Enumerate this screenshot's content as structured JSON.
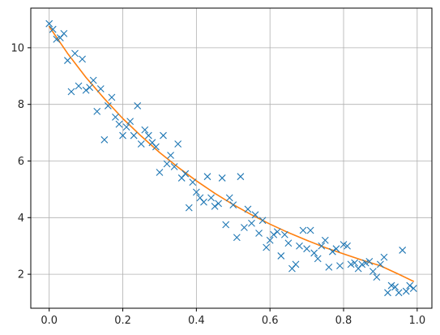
{
  "chart_data": {
    "type": "scatter",
    "title": "",
    "xlabel": "",
    "ylabel": "",
    "xlim": [
      -0.05,
      1.04
    ],
    "ylim": [
      0.8,
      11.4
    ],
    "grid": true,
    "x_ticks": [
      "0.0",
      "0.2",
      "0.4",
      "0.6",
      "0.8",
      "1.0"
    ],
    "y_ticks": [
      "2",
      "4",
      "6",
      "8",
      "10"
    ],
    "colors": {
      "points": "#1f77b4",
      "fit": "#ff7f0e",
      "grid": "#b0b0b0",
      "axes": "#000000"
    },
    "series": [
      {
        "kind": "scatter",
        "marker": "x",
        "x": [
          0.0,
          0.01,
          0.02,
          0.03,
          0.04,
          0.05,
          0.06,
          0.07,
          0.08,
          0.09,
          0.1,
          0.11,
          0.12,
          0.13,
          0.14,
          0.15,
          0.16,
          0.17,
          0.18,
          0.19,
          0.2,
          0.21,
          0.22,
          0.23,
          0.24,
          0.25,
          0.26,
          0.27,
          0.28,
          0.29,
          0.3,
          0.31,
          0.32,
          0.33,
          0.34,
          0.35,
          0.36,
          0.37,
          0.38,
          0.39,
          0.4,
          0.41,
          0.42,
          0.43,
          0.44,
          0.45,
          0.46,
          0.47,
          0.48,
          0.49,
          0.5,
          0.51,
          0.52,
          0.53,
          0.54,
          0.55,
          0.56,
          0.57,
          0.58,
          0.59,
          0.6,
          0.61,
          0.62,
          0.63,
          0.64,
          0.65,
          0.66,
          0.67,
          0.68,
          0.69,
          0.7,
          0.71,
          0.72,
          0.73,
          0.74,
          0.75,
          0.76,
          0.77,
          0.78,
          0.79,
          0.8,
          0.81,
          0.82,
          0.83,
          0.84,
          0.85,
          0.86,
          0.87,
          0.88,
          0.89,
          0.9,
          0.91,
          0.92,
          0.93,
          0.94,
          0.95,
          0.96,
          0.97,
          0.98,
          0.99
        ],
        "y": [
          10.85,
          10.65,
          10.3,
          10.35,
          10.5,
          9.55,
          8.45,
          9.8,
          8.65,
          9.6,
          8.5,
          8.6,
          8.85,
          7.75,
          8.55,
          6.75,
          7.95,
          8.25,
          7.55,
          7.3,
          6.9,
          7.2,
          7.4,
          6.9,
          7.95,
          6.6,
          7.1,
          6.9,
          6.65,
          6.5,
          5.6,
          6.9,
          5.9,
          6.2,
          5.8,
          6.6,
          5.4,
          5.55,
          4.35,
          5.25,
          4.9,
          4.7,
          4.55,
          5.45,
          4.7,
          4.4,
          4.5,
          5.4,
          3.75,
          4.7,
          4.45,
          3.3,
          5.45,
          3.65,
          4.3,
          3.8,
          4.1,
          3.45,
          3.9,
          2.95,
          3.2,
          3.4,
          3.5,
          2.65,
          3.4,
          3.1,
          2.2,
          2.35,
          3.0,
          3.55,
          2.9,
          3.55,
          2.75,
          2.55,
          3.0,
          3.2,
          2.25,
          2.8,
          2.9,
          2.3,
          3.05,
          3.0,
          2.35,
          2.4,
          2.2,
          2.35,
          2.4,
          2.45,
          2.1,
          1.9,
          2.35,
          2.6,
          1.35,
          1.6,
          1.55,
          1.35,
          2.85,
          1.4,
          1.6,
          1.5
        ]
      },
      {
        "kind": "line",
        "x": [
          0.0,
          0.05,
          0.1,
          0.15,
          0.2,
          0.25,
          0.3,
          0.35,
          0.4,
          0.45,
          0.5,
          0.55,
          0.6,
          0.65,
          0.7,
          0.75,
          0.8,
          0.85,
          0.9,
          0.95,
          0.99
        ],
        "y": [
          10.75,
          9.8,
          8.95,
          8.2,
          7.5,
          6.88,
          6.3,
          5.78,
          5.3,
          4.86,
          4.46,
          4.1,
          3.77,
          3.47,
          3.2,
          2.94,
          2.72,
          2.5,
          2.3,
          2.0,
          1.75
        ]
      }
    ]
  }
}
